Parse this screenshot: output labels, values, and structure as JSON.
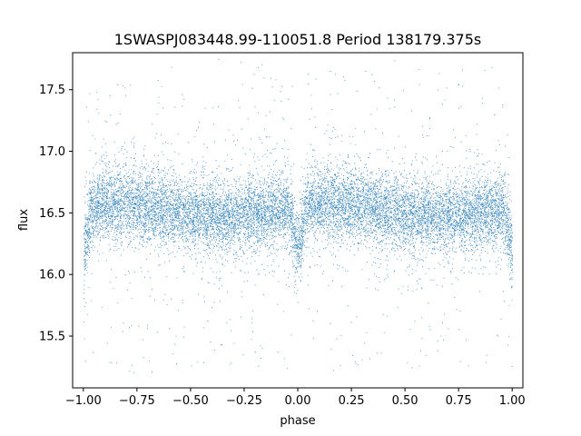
{
  "chart_data": {
    "type": "scatter",
    "title": "1SWASPJ083448.99-110051.8 Period 138179.375s",
    "xlabel": "phase",
    "ylabel": "flux",
    "xlim": [
      -1.05,
      1.05
    ],
    "ylim": [
      15.08,
      17.8
    ],
    "x_ticks": [
      -1.0,
      -0.75,
      -0.5,
      -0.25,
      0.0,
      0.25,
      0.5,
      0.75,
      1.0
    ],
    "x_tick_labels": [
      "−1.00",
      "−0.75",
      "−0.50",
      "−0.25",
      "0.00",
      "0.25",
      "0.50",
      "0.75",
      "1.00"
    ],
    "y_ticks": [
      15.5,
      16.0,
      16.5,
      17.0,
      17.5
    ],
    "y_tick_labels": [
      "15.5",
      "16.0",
      "16.5",
      "17.0",
      "17.5"
    ],
    "grid": false,
    "marker_color": "#1f77b4",
    "series": [
      {
        "x_range": [
          -1.0,
          1.0
        ],
        "baseline_flux": 16.52,
        "scatter_std": 0.14,
        "dips": [
          {
            "phase": -1.0,
            "depth": 0.35
          },
          {
            "phase": 0.0,
            "depth": 0.32
          },
          {
            "phase": 1.0,
            "depth": 0.35
          }
        ],
        "outlier_range": [
          15.2,
          17.75
        ],
        "n_points": 14000
      }
    ]
  }
}
